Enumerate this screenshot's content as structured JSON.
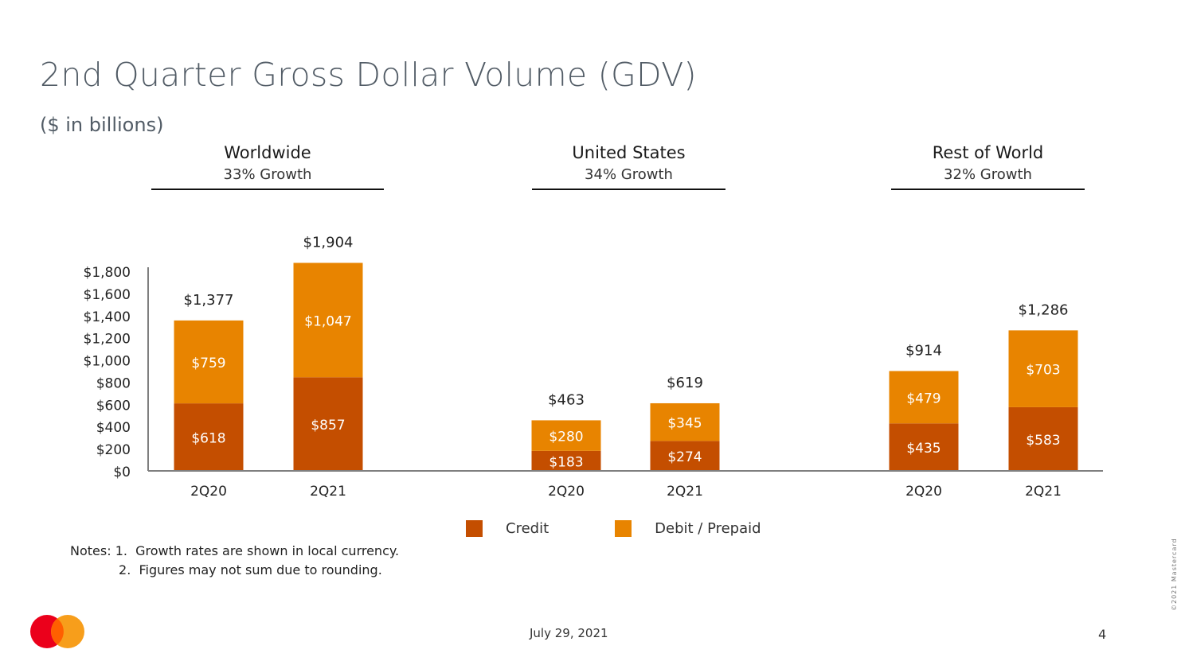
{
  "title": "2nd Quarter Gross Dollar Volume (GDV)",
  "subtitle": "($ in billions)",
  "regions": [
    {
      "name": "Worldwide",
      "growth": "33% Growth"
    },
    {
      "name": "United States",
      "growth": "34% Growth"
    },
    {
      "name": "Rest of World",
      "growth": "32% Growth"
    }
  ],
  "colors": {
    "credit": "#c44e00",
    "debit": "#e88400",
    "axis": "#7f7f7f"
  },
  "legend": {
    "credit": "Credit",
    "debit": "Debit / Prepaid"
  },
  "notes": "Notes: 1.  Growth rates are shown in local currency.\n            2.  Figures may not sum due to rounding.",
  "footer": {
    "date": "July 29, 2021",
    "page": "4",
    "copyright": "©2021 Mastercard"
  },
  "chart_data": {
    "type": "bar",
    "stacked": true,
    "title": "2nd Quarter Gross Dollar Volume (GDV)",
    "ylabel": "$ in billions",
    "ylim": [
      0,
      1800
    ],
    "yticks": [
      "$0",
      "$200",
      "$400",
      "$600",
      "$800",
      "$1,000",
      "$1,200",
      "$1,400",
      "$1,600",
      "$1,800"
    ],
    "ytick_values": [
      0,
      200,
      400,
      600,
      800,
      1000,
      1200,
      1400,
      1600,
      1800
    ],
    "groups": [
      "Worldwide",
      "United States",
      "Rest of World"
    ],
    "categories": [
      "2Q20",
      "2Q21",
      "2Q20",
      "2Q21",
      "2Q20",
      "2Q21"
    ],
    "series": [
      {
        "name": "Credit",
        "values": [
          618,
          857,
          183,
          274,
          435,
          583
        ],
        "labels": [
          "$618",
          "$857",
          "$183",
          "$274",
          "$435",
          "$583"
        ]
      },
      {
        "name": "Debit / Prepaid",
        "values": [
          759,
          1047,
          280,
          345,
          479,
          703
        ],
        "labels": [
          "$759",
          "$1,047",
          "$280",
          "$345",
          "$479",
          "$703"
        ]
      }
    ],
    "totals": [
      1377,
      1904,
      463,
      619,
      914,
      1286
    ],
    "total_labels": [
      "$1,377",
      "$1,904",
      "$463",
      "$619",
      "$914",
      "$1,286"
    ],
    "legend_position": "bottom",
    "grid": false
  }
}
